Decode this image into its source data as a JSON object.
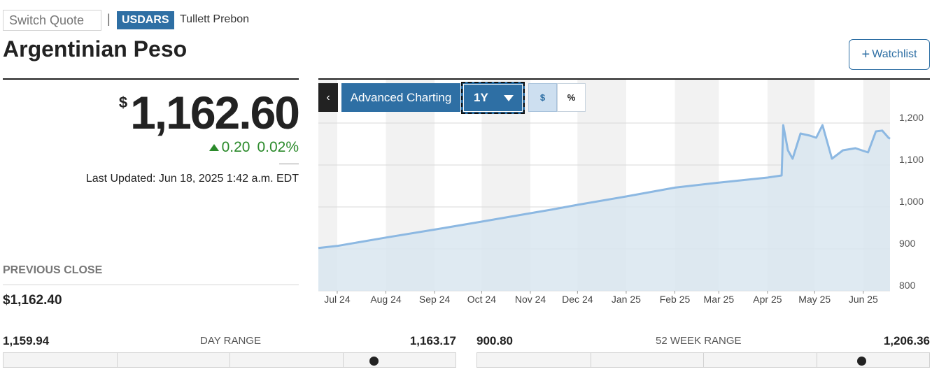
{
  "header": {
    "switch_quote_placeholder": "Switch Quote",
    "separator": "|",
    "ticker": "USDARS",
    "source": "Tullett Prebon",
    "title": "Argentinian Peso",
    "watchlist_label": "Watchlist",
    "watchlist_icon": "plus-icon"
  },
  "quote": {
    "currency_symbol": "$",
    "price": "1,162.60",
    "change": "0.20",
    "change_percent": "0.02%",
    "direction": "up",
    "last_updated": "Last Updated: Jun 18, 2025 1:42 a.m. EDT"
  },
  "previous_close": {
    "label": "PREVIOUS CLOSE",
    "value": "$1,162.40"
  },
  "chart_controls": {
    "back_label": "‹",
    "advanced_label": "Advanced Charting",
    "range_value": "1Y",
    "dollar_label": "$",
    "percent_label": "%"
  },
  "chart_data": {
    "type": "area",
    "x_tick_labels": [
      "Jul 24",
      "Aug 24",
      "Sep 24",
      "Oct 24",
      "Nov 24",
      "Dec 24",
      "Jan 25",
      "Feb 25",
      "Mar 25",
      "Apr 25",
      "May 25",
      "Jun 25"
    ],
    "y_tick_labels": [
      "1,200",
      "1,100",
      "1,000",
      "900",
      "800"
    ],
    "ylim": [
      800,
      1200
    ],
    "grid": true,
    "y_axis_side": "right",
    "line_color": "#8cb8e2",
    "fill_color": "#d9e6f0",
    "series": [
      {
        "points": [
          [
            "2024-06-19",
            902
          ],
          [
            "2024-07-01",
            907
          ],
          [
            "2024-08-01",
            927
          ],
          [
            "2024-09-01",
            946
          ],
          [
            "2024-10-01",
            965
          ],
          [
            "2024-11-01",
            985
          ],
          [
            "2024-11-15",
            994
          ],
          [
            "2024-12-01",
            1005
          ],
          [
            "2025-01-01",
            1025
          ],
          [
            "2025-02-01",
            1046
          ],
          [
            "2025-03-01",
            1058
          ],
          [
            "2025-04-01",
            1070
          ],
          [
            "2025-04-10",
            1075
          ],
          [
            "2025-04-11",
            1195
          ],
          [
            "2025-04-14",
            1135
          ],
          [
            "2025-04-17",
            1115
          ],
          [
            "2025-04-22",
            1175
          ],
          [
            "2025-04-28",
            1170
          ],
          [
            "2025-05-02",
            1165
          ],
          [
            "2025-05-06",
            1195
          ],
          [
            "2025-05-12",
            1115
          ],
          [
            "2025-05-19",
            1135
          ],
          [
            "2025-05-27",
            1140
          ],
          [
            "2025-06-04",
            1130
          ],
          [
            "2025-06-09",
            1180
          ],
          [
            "2025-06-13",
            1182
          ],
          [
            "2025-06-17",
            1165
          ],
          [
            "2025-06-18",
            1162.6
          ]
        ]
      }
    ]
  },
  "day_range": {
    "label": "DAY RANGE",
    "low": "1,159.94",
    "high": "1,163.17",
    "position": 0.82
  },
  "week52_range": {
    "label": "52 WEEK RANGE",
    "low": "900.80",
    "high": "1,206.36",
    "position": 0.85
  }
}
